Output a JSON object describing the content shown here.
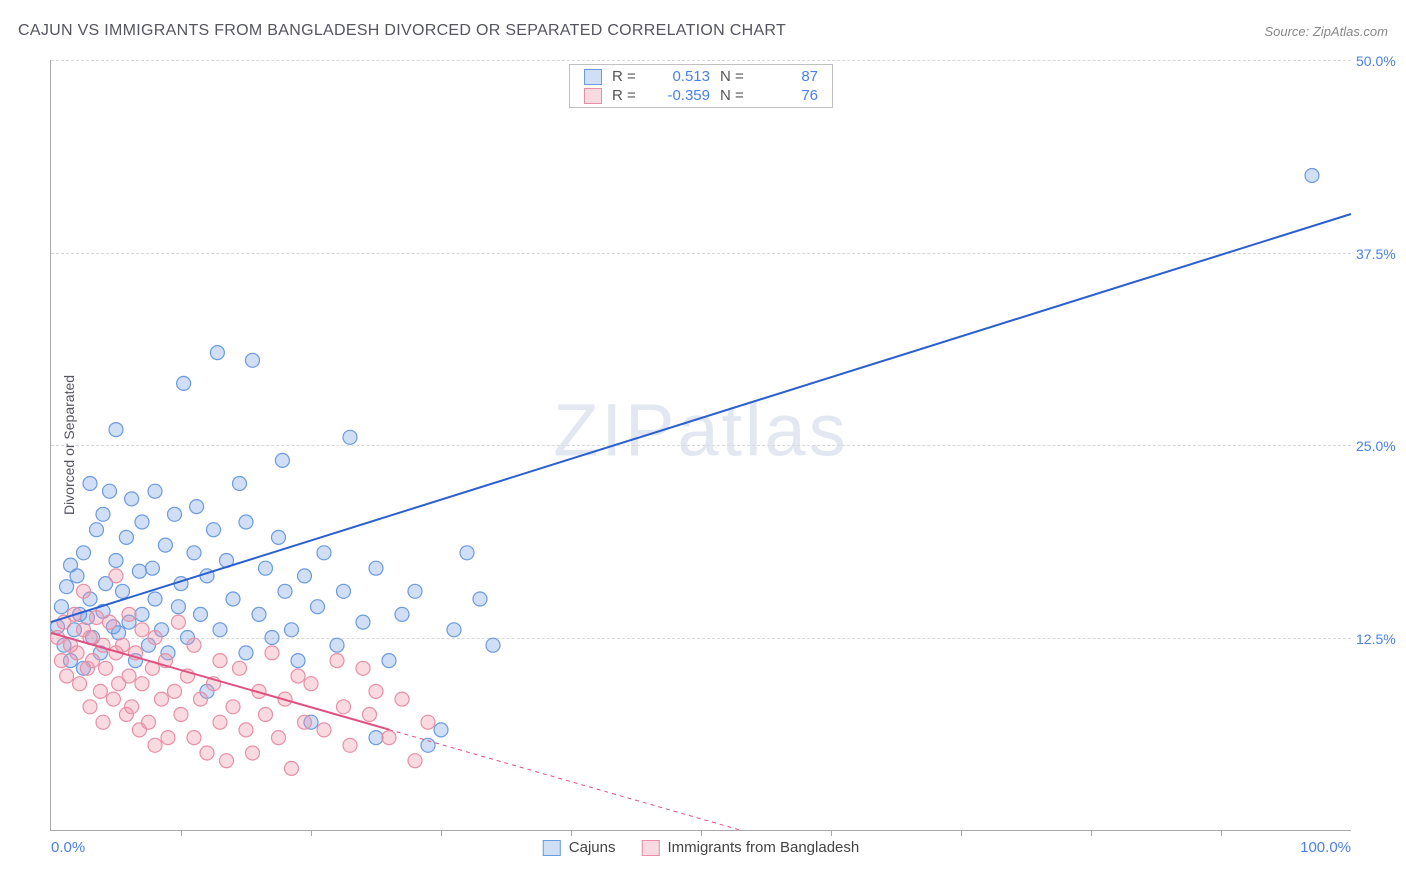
{
  "title": "CAJUN VS IMMIGRANTS FROM BANGLADESH DIVORCED OR SEPARATED CORRELATION CHART",
  "source_label": "Source: ",
  "source_name": "ZipAtlas.com",
  "watermark": "ZIPatlas",
  "y_axis_title": "Divorced or Separated",
  "chart": {
    "type": "scatter",
    "xlim": [
      0,
      100
    ],
    "ylim": [
      0,
      50
    ],
    "x_tick_labels": [
      "0.0%",
      "100.0%"
    ],
    "x_minor_tick_count": 9,
    "y_gridlines": [
      12.5,
      25.0,
      37.5,
      50.0
    ],
    "y_tick_labels": [
      "12.5%",
      "25.0%",
      "37.5%",
      "50.0%"
    ],
    "background_color": "#ffffff",
    "grid_color": "#d8d8d8",
    "axis_color": "#a8a8a8",
    "tick_label_color": "#4a80e8",
    "marker_radius": 7,
    "marker_stroke_width": 1.2,
    "line_width": 2,
    "series": [
      {
        "name": "Cajuns",
        "color_fill": "rgba(120,160,230,0.35)",
        "color_stroke": "#6b9be0",
        "line_color": "#2a5fd0",
        "r_label": "R =",
        "r_value": "0.513",
        "n_label": "N =",
        "n_value": "87",
        "trend": {
          "x1": 0,
          "y1": 13.5,
          "x2": 100,
          "y2": 40.0,
          "dashed_from_x": null
        },
        "points": [
          [
            0.5,
            13.2
          ],
          [
            0.8,
            14.5
          ],
          [
            1.0,
            12.0
          ],
          [
            1.2,
            15.8
          ],
          [
            1.5,
            11.0
          ],
          [
            1.5,
            17.2
          ],
          [
            1.8,
            13.0
          ],
          [
            2.0,
            16.5
          ],
          [
            2.2,
            14.0
          ],
          [
            2.5,
            18.0
          ],
          [
            2.5,
            10.5
          ],
          [
            2.8,
            13.8
          ],
          [
            3.0,
            15.0
          ],
          [
            3.0,
            22.5
          ],
          [
            3.2,
            12.5
          ],
          [
            3.5,
            19.5
          ],
          [
            3.8,
            11.5
          ],
          [
            4.0,
            14.2
          ],
          [
            4.0,
            20.5
          ],
          [
            4.2,
            16.0
          ],
          [
            4.5,
            22.0
          ],
          [
            4.8,
            13.2
          ],
          [
            5.0,
            17.5
          ],
          [
            5.0,
            26.0
          ],
          [
            5.2,
            12.8
          ],
          [
            5.5,
            15.5
          ],
          [
            5.8,
            19.0
          ],
          [
            6.0,
            13.5
          ],
          [
            6.2,
            21.5
          ],
          [
            6.5,
            11.0
          ],
          [
            6.8,
            16.8
          ],
          [
            7.0,
            14.0
          ],
          [
            7.0,
            20.0
          ],
          [
            7.5,
            12.0
          ],
          [
            7.8,
            17.0
          ],
          [
            8.0,
            15.0
          ],
          [
            8.0,
            22.0
          ],
          [
            8.5,
            13.0
          ],
          [
            8.8,
            18.5
          ],
          [
            9.0,
            11.5
          ],
          [
            9.5,
            20.5
          ],
          [
            9.8,
            14.5
          ],
          [
            10.0,
            16.0
          ],
          [
            10.2,
            29.0
          ],
          [
            10.5,
            12.5
          ],
          [
            11.0,
            18.0
          ],
          [
            11.2,
            21.0
          ],
          [
            11.5,
            14.0
          ],
          [
            12.0,
            9.0
          ],
          [
            12.0,
            16.5
          ],
          [
            12.5,
            19.5
          ],
          [
            12.8,
            31.0
          ],
          [
            13.0,
            13.0
          ],
          [
            13.5,
            17.5
          ],
          [
            14.0,
            15.0
          ],
          [
            14.5,
            22.5
          ],
          [
            15.0,
            11.5
          ],
          [
            15.0,
            20.0
          ],
          [
            15.5,
            30.5
          ],
          [
            16.0,
            14.0
          ],
          [
            16.5,
            17.0
          ],
          [
            17.0,
            12.5
          ],
          [
            17.5,
            19.0
          ],
          [
            17.8,
            24.0
          ],
          [
            18.0,
            15.5
          ],
          [
            18.5,
            13.0
          ],
          [
            19.0,
            11.0
          ],
          [
            19.5,
            16.5
          ],
          [
            20.0,
            7.0
          ],
          [
            20.5,
            14.5
          ],
          [
            21.0,
            18.0
          ],
          [
            22.0,
            12.0
          ],
          [
            22.5,
            15.5
          ],
          [
            23.0,
            25.5
          ],
          [
            24.0,
            13.5
          ],
          [
            25.0,
            6.0
          ],
          [
            25.0,
            17.0
          ],
          [
            26.0,
            11.0
          ],
          [
            27.0,
            14.0
          ],
          [
            28.0,
            15.5
          ],
          [
            29.0,
            5.5
          ],
          [
            30.0,
            6.5
          ],
          [
            31.0,
            13.0
          ],
          [
            32.0,
            18.0
          ],
          [
            33.0,
            15.0
          ],
          [
            34.0,
            12.0
          ],
          [
            97.0,
            42.5
          ]
        ]
      },
      {
        "name": "Immigrants from Bangladesh",
        "color_fill": "rgba(240,150,170,0.35)",
        "color_stroke": "#e890a5",
        "line_color": "#e05080",
        "r_label": "R =",
        "r_value": "-0.359",
        "n_label": "N =",
        "n_value": "76",
        "trend": {
          "x1": 0,
          "y1": 12.8,
          "x2": 53,
          "y2": 0.0,
          "dashed_from_x": 26
        },
        "points": [
          [
            0.5,
            12.5
          ],
          [
            0.8,
            11.0
          ],
          [
            1.0,
            13.5
          ],
          [
            1.2,
            10.0
          ],
          [
            1.5,
            12.0
          ],
          [
            1.8,
            14.0
          ],
          [
            2.0,
            11.5
          ],
          [
            2.2,
            9.5
          ],
          [
            2.5,
            13.0
          ],
          [
            2.5,
            15.5
          ],
          [
            2.8,
            10.5
          ],
          [
            3.0,
            12.5
          ],
          [
            3.0,
            8.0
          ],
          [
            3.2,
            11.0
          ],
          [
            3.5,
            13.8
          ],
          [
            3.8,
            9.0
          ],
          [
            4.0,
            12.0
          ],
          [
            4.0,
            7.0
          ],
          [
            4.2,
            10.5
          ],
          [
            4.5,
            13.5
          ],
          [
            4.8,
            8.5
          ],
          [
            5.0,
            11.5
          ],
          [
            5.0,
            16.5
          ],
          [
            5.2,
            9.5
          ],
          [
            5.5,
            12.0
          ],
          [
            5.8,
            7.5
          ],
          [
            6.0,
            10.0
          ],
          [
            6.0,
            14.0
          ],
          [
            6.2,
            8.0
          ],
          [
            6.5,
            11.5
          ],
          [
            6.8,
            6.5
          ],
          [
            7.0,
            9.5
          ],
          [
            7.0,
            13.0
          ],
          [
            7.5,
            7.0
          ],
          [
            7.8,
            10.5
          ],
          [
            8.0,
            12.5
          ],
          [
            8.0,
            5.5
          ],
          [
            8.5,
            8.5
          ],
          [
            8.8,
            11.0
          ],
          [
            9.0,
            6.0
          ],
          [
            9.5,
            9.0
          ],
          [
            9.8,
            13.5
          ],
          [
            10.0,
            7.5
          ],
          [
            10.5,
            10.0
          ],
          [
            11.0,
            6.0
          ],
          [
            11.0,
            12.0
          ],
          [
            11.5,
            8.5
          ],
          [
            12.0,
            5.0
          ],
          [
            12.5,
            9.5
          ],
          [
            13.0,
            7.0
          ],
          [
            13.0,
            11.0
          ],
          [
            13.5,
            4.5
          ],
          [
            14.0,
            8.0
          ],
          [
            14.5,
            10.5
          ],
          [
            15.0,
            6.5
          ],
          [
            15.5,
            5.0
          ],
          [
            16.0,
            9.0
          ],
          [
            16.5,
            7.5
          ],
          [
            17.0,
            11.5
          ],
          [
            17.5,
            6.0
          ],
          [
            18.0,
            8.5
          ],
          [
            18.5,
            4.0
          ],
          [
            19.0,
            10.0
          ],
          [
            19.5,
            7.0
          ],
          [
            20.0,
            9.5
          ],
          [
            21.0,
            6.5
          ],
          [
            22.0,
            11.0
          ],
          [
            22.5,
            8.0
          ],
          [
            23.0,
            5.5
          ],
          [
            24.0,
            10.5
          ],
          [
            24.5,
            7.5
          ],
          [
            25.0,
            9.0
          ],
          [
            26.0,
            6.0
          ],
          [
            27.0,
            8.5
          ],
          [
            28.0,
            4.5
          ],
          [
            29.0,
            7.0
          ]
        ]
      }
    ]
  },
  "legend_bottom": [
    {
      "swatch_fill": "rgba(120,160,230,0.35)",
      "swatch_stroke": "#6b9be0",
      "label": "Cajuns"
    },
    {
      "swatch_fill": "rgba(240,150,170,0.35)",
      "swatch_stroke": "#e890a5",
      "label": "Immigrants from Bangladesh"
    }
  ]
}
